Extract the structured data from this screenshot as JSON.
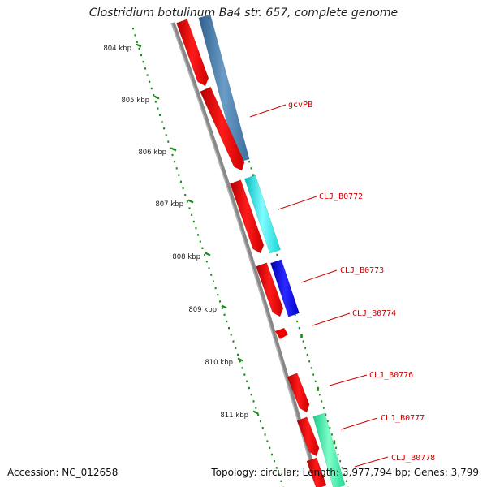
{
  "title": "Clostridium botulinum Ba4 str. 657, complete genome",
  "footer": {
    "accession": "Accession: NC_012658",
    "summary": "Topology: circular; Length: 3,977,794 bp; Genes: 3,799"
  },
  "ruler": {
    "labels": [
      "804 kbp",
      "805 kbp",
      "806 kbp",
      "807 kbp",
      "808 kbp",
      "809 kbp",
      "810 kbp",
      "811 kbp"
    ],
    "tick_color": "#1a8a1a"
  },
  "genes": [
    {
      "name": "gcvPB",
      "color": "#cc0000"
    },
    {
      "name": "CLJ_B0772",
      "color": "#cc0000"
    },
    {
      "name": "CLJ_B0773",
      "color": "#cc0000"
    },
    {
      "name": "CLJ_B0774",
      "color": "#cc0000"
    },
    {
      "name": "CLJ_B0776",
      "color": "#cc0000"
    },
    {
      "name": "CLJ_B0777",
      "color": "#cc0000"
    },
    {
      "name": "CLJ_B0778",
      "color": "#cc0000"
    }
  ],
  "colors": {
    "cds": "#ff0000",
    "backbone": "#888888",
    "steel_blue_feature": "#4f84b4",
    "cyan_feature": "#40e8e8",
    "blue_feature": "#1010ee",
    "green_feature": "#40f0a8"
  }
}
